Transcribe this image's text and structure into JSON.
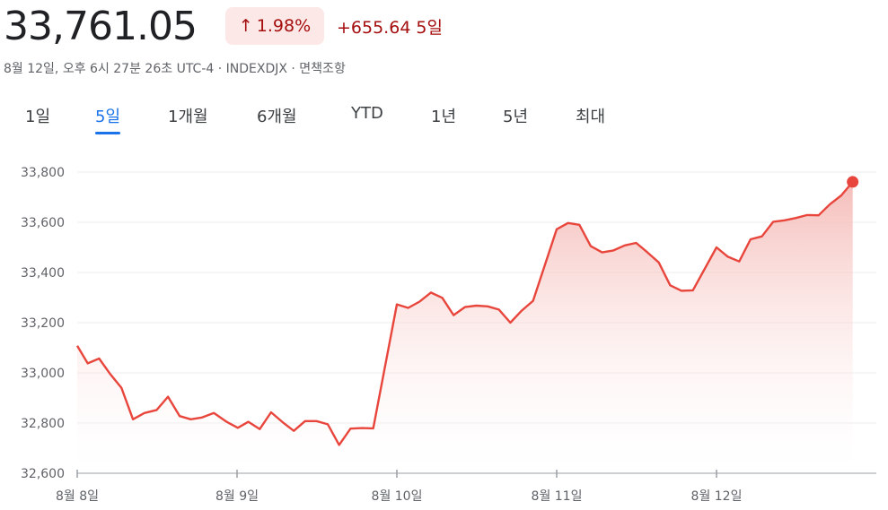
{
  "header": {
    "price": "33,761.05",
    "change_percent": "1.98%",
    "change_abs": "+655.64",
    "period_label": "5일",
    "meta": "8월 12일, 오후 6시 27분 26초 UTC-4 · INDEXDJX · 면책조항",
    "arrow_icon": "arrow-up-icon"
  },
  "tabs": [
    {
      "label": "1일",
      "active": false
    },
    {
      "label": "5일",
      "active": true
    },
    {
      "label": "1개월",
      "active": false
    },
    {
      "label": "6개월",
      "active": false
    },
    {
      "label": "YTD",
      "active": false
    },
    {
      "label": "1년",
      "active": false
    },
    {
      "label": "5년",
      "active": false
    },
    {
      "label": "최대",
      "active": false
    }
  ],
  "colors": {
    "line": "#e8463c",
    "fill_top": "#f4b6b2",
    "badge_bg": "#fce8e6",
    "down_text": "#a50e0e",
    "active_tab": "#1a73e8"
  },
  "chart_data": {
    "type": "area",
    "title": "",
    "xlabel": "",
    "ylabel": "",
    "ylim": [
      32600,
      33800
    ],
    "yticks": [
      "33,800",
      "33,600",
      "33,400",
      "33,200",
      "33,000",
      "32,800",
      "32,600"
    ],
    "ytick_values": [
      33800,
      33600,
      33400,
      33200,
      33000,
      32800,
      32600
    ],
    "xlim": [
      0,
      5
    ],
    "xticks": [
      "8월 8일",
      "8월 9일",
      "8월 10일",
      "8월 11일",
      "8월 12일"
    ],
    "xtick_values": [
      0,
      1,
      2,
      3,
      4
    ],
    "grid": true,
    "series": [
      {
        "values": [
          [
            0.0,
            33108
          ],
          [
            0.066,
            33038
          ],
          [
            0.137,
            33057
          ],
          [
            0.207,
            32995
          ],
          [
            0.277,
            32940
          ],
          [
            0.349,
            32815
          ],
          [
            0.42,
            32840
          ],
          [
            0.497,
            32852
          ],
          [
            0.568,
            32905
          ],
          [
            0.641,
            32828
          ],
          [
            0.71,
            32815
          ],
          [
            0.781,
            32822
          ],
          [
            0.855,
            32840
          ],
          [
            0.935,
            32805
          ],
          [
            1.005,
            32781
          ],
          [
            1.071,
            32805
          ],
          [
            1.142,
            32776
          ],
          [
            1.213,
            32843
          ],
          [
            1.284,
            32804
          ],
          [
            1.355,
            32769
          ],
          [
            1.426,
            32808
          ],
          [
            1.497,
            32808
          ],
          [
            1.568,
            32795
          ],
          [
            1.639,
            32713
          ],
          [
            1.71,
            32778
          ],
          [
            1.781,
            32780
          ],
          [
            1.852,
            32779
          ],
          [
            2.0,
            33273
          ],
          [
            2.071,
            33259
          ],
          [
            2.142,
            33284
          ],
          [
            2.213,
            33320
          ],
          [
            2.284,
            33299
          ],
          [
            2.355,
            33230
          ],
          [
            2.426,
            33262
          ],
          [
            2.497,
            33268
          ],
          [
            2.568,
            33265
          ],
          [
            2.639,
            33252
          ],
          [
            2.71,
            33200
          ],
          [
            2.781,
            33248
          ],
          [
            2.852,
            33287
          ],
          [
            3.0,
            33572
          ],
          [
            3.071,
            33597
          ],
          [
            3.142,
            33590
          ],
          [
            3.213,
            33505
          ],
          [
            3.284,
            33480
          ],
          [
            3.355,
            33488
          ],
          [
            3.426,
            33508
          ],
          [
            3.497,
            33518
          ],
          [
            3.568,
            33480
          ],
          [
            3.639,
            33440
          ],
          [
            3.71,
            33349
          ],
          [
            3.781,
            33327
          ],
          [
            3.852,
            33329
          ],
          [
            4.0,
            33500
          ],
          [
            4.071,
            33463
          ],
          [
            4.142,
            33444
          ],
          [
            4.213,
            33532
          ],
          [
            4.284,
            33544
          ],
          [
            4.355,
            33602
          ],
          [
            4.426,
            33608
          ],
          [
            4.497,
            33617
          ],
          [
            4.568,
            33629
          ],
          [
            4.639,
            33628
          ],
          [
            4.71,
            33672
          ],
          [
            4.781,
            33707
          ],
          [
            4.852,
            33761
          ]
        ]
      }
    ]
  }
}
